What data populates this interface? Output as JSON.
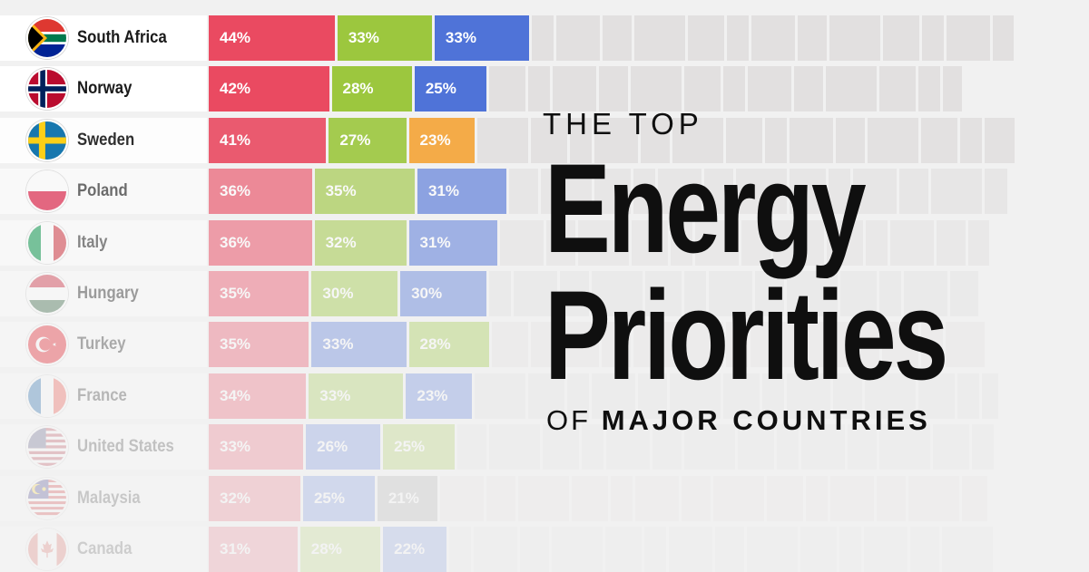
{
  "title": {
    "line1": "THE TOP",
    "line2": "Energy",
    "line3": "Priorities",
    "line4_prefix": "OF",
    "line4_bold": "MAJOR COUNTRIES"
  },
  "chart_data": {
    "type": "bar",
    "stacked": true,
    "orientation": "horizontal",
    "categories": [
      "South Africa",
      "Norway",
      "Sweden",
      "Poland",
      "Italy",
      "Hungary",
      "Turkey",
      "France",
      "United States",
      "Malaysia",
      "Canada"
    ],
    "rows": [
      {
        "country": "South Africa",
        "flag": "flag-south-africa",
        "values": [
          44,
          33,
          33
        ],
        "labels": [
          "44%",
          "33%",
          "33%"
        ],
        "colors": [
          "#ea4a61",
          "#9cc73e",
          "#4f73d8"
        ],
        "opacity": 1.0
      },
      {
        "country": "Norway",
        "flag": "flag-norway",
        "values": [
          42,
          28,
          25
        ],
        "labels": [
          "42%",
          "28%",
          "25%"
        ],
        "colors": [
          "#ea4a61",
          "#9cc73e",
          "#4f73d8"
        ],
        "opacity": 1.0
      },
      {
        "country": "Sweden",
        "flag": "flag-sweden",
        "values": [
          41,
          27,
          23
        ],
        "labels": [
          "41%",
          "27%",
          "23%"
        ],
        "colors": [
          "#ea4a61",
          "#9cc73e",
          "#f5a436"
        ],
        "opacity": 0.9
      },
      {
        "country": "Poland",
        "flag": "flag-poland",
        "values": [
          36,
          35,
          31
        ],
        "labels": [
          "36%",
          "35%",
          "31%"
        ],
        "colors": [
          "#ea4a61",
          "#9cc73e",
          "#4f73d8"
        ],
        "opacity": 0.62
      },
      {
        "country": "Italy",
        "flag": "flag-italy",
        "values": [
          36,
          32,
          31
        ],
        "labels": [
          "36%",
          "32%",
          "31%"
        ],
        "colors": [
          "#ea4a61",
          "#9cc73e",
          "#4f73d8"
        ],
        "opacity": 0.5
      },
      {
        "country": "Hungary",
        "flag": "flag-hungary",
        "values": [
          35,
          30,
          30
        ],
        "labels": [
          "35%",
          "30%",
          "30%"
        ],
        "colors": [
          "#ea4a61",
          "#9cc73e",
          "#4f73d8"
        ],
        "opacity": 0.4
      },
      {
        "country": "Turkey",
        "flag": "flag-turkey",
        "values": [
          35,
          33,
          28
        ],
        "labels": [
          "35%",
          "33%",
          "28%"
        ],
        "colors": [
          "#ea4a61",
          "#4f73d8",
          "#9cc73e"
        ],
        "opacity": 0.33
      },
      {
        "country": "France",
        "flag": "flag-france",
        "values": [
          34,
          33,
          23
        ],
        "labels": [
          "34%",
          "33%",
          "23%"
        ],
        "colors": [
          "#ea4a61",
          "#9cc73e",
          "#4f73d8"
        ],
        "opacity": 0.27
      },
      {
        "country": "United States",
        "flag": "flag-united-states",
        "values": [
          33,
          26,
          25
        ],
        "labels": [
          "33%",
          "26%",
          "25%"
        ],
        "colors": [
          "#ea4a61",
          "#4f73d8",
          "#9cc73e"
        ],
        "opacity": 0.22
      },
      {
        "country": "Malaysia",
        "flag": "flag-malaysia",
        "values": [
          32,
          25,
          21
        ],
        "labels": [
          "32%",
          "25%",
          "21%"
        ],
        "colors": [
          "#ea4a61",
          "#4f73d8",
          "#9a9a9a"
        ],
        "opacity": 0.19
      },
      {
        "country": "Canada",
        "flag": "flag-canada",
        "values": [
          31,
          28,
          22
        ],
        "labels": [
          "31%",
          "28%",
          "22%"
        ],
        "colors": [
          "#ea4a61",
          "#9cc73e",
          "#4f73d8"
        ],
        "opacity": 0.16
      }
    ],
    "background_segments_total": [
      1117,
      1060,
      1118,
      1110,
      1090,
      1078,
      1085,
      1100,
      1100,
      1088,
      1095
    ],
    "xlim": [
      0,
      100
    ]
  }
}
